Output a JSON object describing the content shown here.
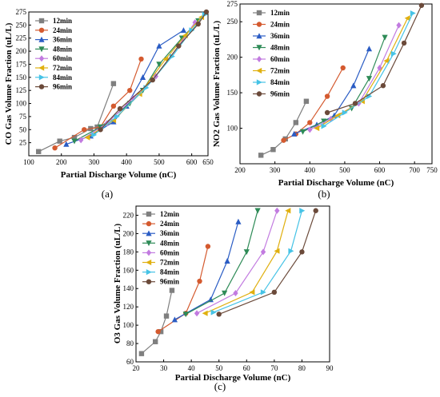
{
  "colors": {
    "12min": "#7f7f7f",
    "24min": "#d45a2f",
    "36min": "#2a5cc4",
    "48min": "#2e8b57",
    "60min": "#c27be0",
    "72min": "#e0b010",
    "84min": "#46c3e6",
    "96min": "#6b4a3a"
  },
  "chart_data": [
    {
      "type": "line",
      "caption": "(a)",
      "xlabel": "Partial Discharge Volume (nC)",
      "ylabel": "CO Gas Volume Fraction (uL/L)",
      "xlim": [
        100,
        650
      ],
      "ylim": [
        0,
        275
      ],
      "xticks": [
        100,
        200,
        300,
        400,
        500,
        600,
        650
      ],
      "yticks": [
        25,
        50,
        75,
        100,
        125,
        150,
        175,
        200,
        225,
        250,
        275
      ],
      "legend": "top-left",
      "series": [
        {
          "name": "12min",
          "marker": "square",
          "x": [
            130,
            195,
            240,
            290,
            310,
            360
          ],
          "y": [
            8,
            28,
            35,
            52,
            55,
            138
          ]
        },
        {
          "name": "24min",
          "marker": "circle",
          "x": [
            180,
            270,
            320,
            360,
            410,
            445
          ],
          "y": [
            15,
            50,
            55,
            95,
            125,
            185
          ]
        },
        {
          "name": "36min",
          "marker": "triangle-up",
          "x": [
            215,
            290,
            360,
            400,
            450,
            500,
            575
          ],
          "y": [
            22,
            38,
            65,
            95,
            150,
            210,
            240
          ]
        },
        {
          "name": "48min",
          "marker": "triangle-down",
          "x": [
            240,
            320,
            410,
            450,
            500,
            570,
            620
          ],
          "y": [
            28,
            55,
            100,
            125,
            175,
            225,
            258
          ]
        },
        {
          "name": "60min",
          "marker": "diamond",
          "x": [
            260,
            340,
            420,
            490,
            560,
            610
          ],
          "y": [
            30,
            62,
            110,
            152,
            210,
            255
          ]
        },
        {
          "name": "72min",
          "marker": "triangle-left",
          "x": [
            280,
            360,
            440,
            520,
            580,
            630
          ],
          "y": [
            35,
            68,
            118,
            185,
            230,
            265
          ]
        },
        {
          "name": "84min",
          "marker": "triangle-right",
          "x": [
            300,
            370,
            460,
            540,
            600,
            640
          ],
          "y": [
            40,
            75,
            130,
            190,
            240,
            270
          ]
        },
        {
          "name": "96min",
          "marker": "circle",
          "x": [
            320,
            380,
            480,
            560,
            620,
            645
          ],
          "y": [
            50,
            90,
            145,
            210,
            252,
            275
          ]
        }
      ]
    },
    {
      "type": "line",
      "caption": "(b)",
      "xlabel": "Partial Discharge Volume (nC)",
      "ylabel": "NO2 Gas Volume Fraction (uL/L)",
      "xlim": [
        200,
        750
      ],
      "ylim": [
        50,
        275
      ],
      "xticks": [
        200,
        300,
        400,
        500,
        600,
        700,
        750
      ],
      "yticks": [
        100,
        150,
        200,
        250,
        275
      ],
      "legend": "top-left",
      "series": [
        {
          "name": "12min",
          "marker": "square",
          "x": [
            260,
            295,
            330,
            360,
            390
          ],
          "y": [
            62,
            70,
            85,
            108,
            138
          ]
        },
        {
          "name": "24min",
          "marker": "circle",
          "x": [
            325,
            360,
            400,
            450,
            495
          ],
          "y": [
            83,
            92,
            108,
            145,
            185
          ]
        },
        {
          "name": "36min",
          "marker": "triangle-up",
          "x": [
            355,
            420,
            470,
            525,
            570
          ],
          "y": [
            92,
            105,
            118,
            160,
            212
          ]
        },
        {
          "name": "48min",
          "marker": "triangle-down",
          "x": [
            380,
            440,
            520,
            570,
            615
          ],
          "y": [
            95,
            110,
            128,
            170,
            228
          ]
        },
        {
          "name": "60min",
          "marker": "diamond",
          "x": [
            400,
            460,
            540,
            600,
            655
          ],
          "y": [
            98,
            113,
            135,
            185,
            245
          ]
        },
        {
          "name": "72min",
          "marker": "triangle-left",
          "x": [
            420,
            480,
            550,
            620,
            680
          ],
          "y": [
            100,
            118,
            138,
            195,
            255
          ]
        },
        {
          "name": "84min",
          "marker": "triangle-right",
          "x": [
            440,
            500,
            570,
            640,
            695
          ],
          "y": [
            103,
            122,
            145,
            205,
            262
          ]
        },
        {
          "name": "96min",
          "marker": "circle",
          "x": [
            450,
            530,
            610,
            670,
            720
          ],
          "y": [
            122,
            135,
            160,
            220,
            273
          ]
        }
      ]
    },
    {
      "type": "line",
      "caption": "(c)",
      "xlabel": "Partial Discharge Volume (nC)",
      "ylabel": "O3 Gas Volume Fraction (uL/L)",
      "xlim": [
        20,
        90
      ],
      "ylim": [
        60,
        230
      ],
      "xticks": [
        20,
        30,
        40,
        50,
        60,
        70,
        80,
        90
      ],
      "yticks": [
        60,
        80,
        100,
        120,
        140,
        160,
        180,
        200,
        220
      ],
      "legend": "top-left",
      "series": [
        {
          "name": "12min",
          "marker": "square",
          "x": [
            22,
            27,
            29,
            31,
            33
          ],
          "y": [
            69,
            82,
            93,
            110,
            138
          ]
        },
        {
          "name": "24min",
          "marker": "circle",
          "x": [
            28,
            38,
            43,
            46
          ],
          "y": [
            93,
            113,
            148,
            186
          ]
        },
        {
          "name": "36min",
          "marker": "triangle-up",
          "x": [
            34,
            47,
            53,
            57
          ],
          "y": [
            106,
            128,
            170,
            213
          ]
        },
        {
          "name": "48min",
          "marker": "triangle-down",
          "x": [
            38,
            52,
            60,
            64
          ],
          "y": [
            112,
            135,
            180,
            225
          ]
        },
        {
          "name": "60min",
          "marker": "diamond",
          "x": [
            42,
            56,
            66,
            71
          ],
          "y": [
            113,
            135,
            180,
            225
          ]
        },
        {
          "name": "72min",
          "marker": "triangle-left",
          "x": [
            45,
            62,
            71,
            75
          ],
          "y": [
            113,
            136,
            181,
            225
          ]
        },
        {
          "name": "84min",
          "marker": "triangle-right",
          "x": [
            48,
            66,
            76,
            80
          ],
          "y": [
            114,
            136,
            181,
            225
          ]
        },
        {
          "name": "96min",
          "marker": "circle",
          "x": [
            50,
            70,
            80,
            85
          ],
          "y": [
            112,
            136,
            180,
            225
          ]
        }
      ]
    }
  ]
}
